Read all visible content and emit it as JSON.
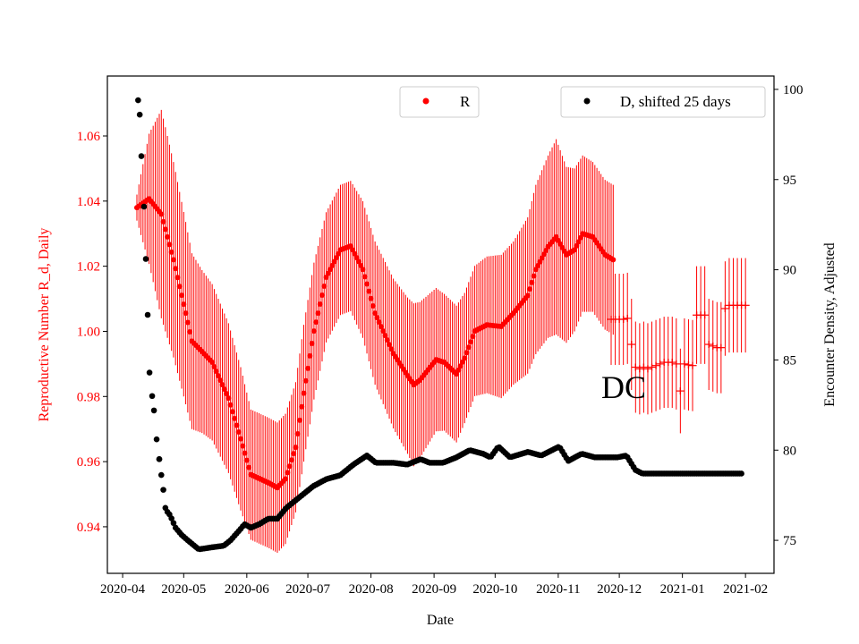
{
  "chart_data": {
    "type": "scatter",
    "xlabel": "Date",
    "ylabel_left": "Reproductive Number R_d, Daily",
    "ylabel_right": "Encounter Density, Adjusted",
    "annotation": "DC",
    "x_unit": "days",
    "xlim": [
      -7.5,
      320
    ],
    "ylim_left": [
      0.9257,
      1.0784
    ],
    "ylim_right": [
      73.17,
      100.74
    ],
    "xticks": [
      {
        "day": 0,
        "label": "2020-04"
      },
      {
        "day": 30,
        "label": "2020-05"
      },
      {
        "day": 61,
        "label": "2020-06"
      },
      {
        "day": 91,
        "label": "2020-07"
      },
      {
        "day": 122,
        "label": "2020-08"
      },
      {
        "day": 153,
        "label": "2020-09"
      },
      {
        "day": 183,
        "label": "2020-10"
      },
      {
        "day": 214,
        "label": "2020-11"
      },
      {
        "day": 244,
        "label": "2020-12"
      },
      {
        "day": 275,
        "label": "2021-01"
      },
      {
        "day": 306,
        "label": "2021-02"
      }
    ],
    "yticks_left": [
      "0.94",
      "0.96",
      "0.98",
      "1.00",
      "1.02",
      "1.04",
      "1.06"
    ],
    "yticks_right": [
      "75",
      "80",
      "85",
      "90",
      "95",
      "100"
    ],
    "legend": [
      {
        "label": "R",
        "color": "#ff0000",
        "placement": "top-center"
      },
      {
        "label": "D, shifted 25 days",
        "color": "#000000",
        "placement": "top-right"
      }
    ],
    "colors": {
      "R": "#ff0000",
      "D": "#000000"
    },
    "series_R": {
      "name": "R",
      "points": [
        [
          7,
          1.038,
          0.004
        ],
        [
          13,
          1.0407,
          0.02
        ],
        [
          19,
          1.036,
          0.032
        ],
        [
          25,
          1.022,
          0.03
        ],
        [
          31,
          1.0056,
          0.028
        ],
        [
          34,
          0.997,
          0.027
        ],
        [
          39,
          0.9938,
          0.025
        ],
        [
          44,
          0.9905,
          0.024
        ],
        [
          52,
          0.9795,
          0.023
        ],
        [
          58,
          0.967,
          0.022
        ],
        [
          63,
          0.956,
          0.02
        ],
        [
          72,
          0.9534,
          0.02
        ],
        [
          76,
          0.952,
          0.02
        ],
        [
          80,
          0.9547,
          0.02
        ],
        [
          85,
          0.9644,
          0.02
        ],
        [
          89,
          0.981,
          0.021
        ],
        [
          94,
          1.0001,
          0.021
        ],
        [
          100,
          1.0166,
          0.02
        ],
        [
          107,
          1.025,
          0.02
        ],
        [
          112,
          1.0262,
          0.02
        ],
        [
          118,
          1.019,
          0.021
        ],
        [
          124,
          1.0056,
          0.022
        ],
        [
          133,
          0.9932,
          0.023
        ],
        [
          140,
          0.9864,
          0.024
        ],
        [
          143,
          0.9836,
          0.025
        ],
        [
          146,
          0.985,
          0.024
        ],
        [
          154,
          0.9913,
          0.022
        ],
        [
          158,
          0.9905,
          0.021
        ],
        [
          164,
          0.9869,
          0.021
        ],
        [
          168,
          0.9918,
          0.02
        ],
        [
          173,
          1.0001,
          0.02
        ],
        [
          179,
          1.002,
          0.021
        ],
        [
          186,
          1.0015,
          0.022
        ],
        [
          192,
          1.0056,
          0.022
        ],
        [
          199,
          1.011,
          0.024
        ],
        [
          203,
          1.019,
          0.026
        ],
        [
          209,
          1.026,
          0.028
        ],
        [
          213,
          1.029,
          0.03
        ],
        [
          218,
          1.0235,
          0.027
        ],
        [
          222,
          1.025,
          0.025
        ],
        [
          226,
          1.03,
          0.024
        ],
        [
          231,
          1.029,
          0.023
        ],
        [
          237,
          1.0235,
          0.023
        ],
        [
          241,
          1.022,
          0.023
        ]
      ]
    },
    "series_R_late": {
      "name": "R (late)",
      "xerr": 2,
      "points": [
        [
          240,
          1.0037,
          0.014
        ],
        [
          242,
          1.0037,
          0.014
        ],
        [
          244,
          1.0037,
          0.014
        ],
        [
          246,
          1.0037,
          0.014
        ],
        [
          248,
          1.004,
          0.014
        ],
        [
          250,
          0.996,
          0.014
        ],
        [
          252,
          0.989,
          0.014
        ],
        [
          254,
          0.9885,
          0.014
        ],
        [
          256,
          0.989,
          0.014
        ],
        [
          258,
          0.9885,
          0.014
        ],
        [
          260,
          0.989,
          0.014
        ],
        [
          262,
          0.9895,
          0.014
        ],
        [
          264,
          0.99,
          0.014
        ],
        [
          266,
          0.9905,
          0.014
        ],
        [
          268,
          0.9905,
          0.014
        ],
        [
          270,
          0.9905,
          0.014
        ],
        [
          272,
          0.99,
          0.014
        ],
        [
          274,
          0.9817,
          0.013
        ],
        [
          276,
          0.99,
          0.014
        ],
        [
          278,
          0.9897,
          0.014
        ],
        [
          280,
          0.9895,
          0.014
        ],
        [
          282,
          1.005,
          0.015
        ],
        [
          284,
          1.005,
          0.015
        ],
        [
          286,
          1.005,
          0.015
        ],
        [
          288,
          0.996,
          0.014
        ],
        [
          290,
          0.9955,
          0.014
        ],
        [
          292,
          0.995,
          0.014
        ],
        [
          294,
          0.995,
          0.014
        ],
        [
          296,
          1.007,
          0.0145
        ],
        [
          298,
          1.008,
          0.0145
        ],
        [
          300,
          1.008,
          0.0145
        ],
        [
          302,
          1.008,
          0.0145
        ],
        [
          304,
          1.008,
          0.0145
        ],
        [
          306,
          1.008,
          0.0145
        ]
      ]
    },
    "series_D": {
      "name": "D, shifted 25 days",
      "points": [
        [
          7.6,
          99.4
        ],
        [
          8.4,
          98.6
        ],
        [
          9.2,
          96.3
        ],
        [
          10.5,
          93.5
        ],
        [
          11.4,
          90.6
        ],
        [
          12.3,
          87.5
        ],
        [
          13.2,
          84.3
        ],
        [
          14.5,
          83.0
        ],
        [
          15.4,
          82.2
        ],
        [
          16.7,
          80.6
        ],
        [
          18,
          79.5
        ],
        [
          18.9,
          78.7
        ],
        [
          19.8,
          78.0
        ],
        [
          21.1,
          76.7
        ],
        [
          23.3,
          76.4
        ],
        [
          26,
          75.7
        ],
        [
          29,
          75.3
        ],
        [
          32,
          75.0
        ],
        [
          37.4,
          74.5
        ],
        [
          43,
          74.6
        ],
        [
          49.7,
          74.7
        ],
        [
          53,
          75.0
        ],
        [
          58.5,
          75.7
        ],
        [
          59.8,
          75.9
        ],
        [
          63,
          75.7
        ],
        [
          67.2,
          75.9
        ],
        [
          71.6,
          76.2
        ],
        [
          76,
          76.2
        ],
        [
          80.4,
          76.8
        ],
        [
          87,
          77.4
        ],
        [
          93.6,
          78.0
        ],
        [
          100.2,
          78.4
        ],
        [
          106.8,
          78.6
        ],
        [
          113.4,
          79.2
        ],
        [
          120,
          79.7
        ],
        [
          124.4,
          79.3
        ],
        [
          133.2,
          79.3
        ],
        [
          139.8,
          79.2
        ],
        [
          146.4,
          79.5
        ],
        [
          150.8,
          79.3
        ],
        [
          157.4,
          79.3
        ],
        [
          164,
          79.6
        ],
        [
          170.5,
          80.0
        ],
        [
          177.1,
          79.8
        ],
        [
          180.7,
          79.6
        ],
        [
          184.6,
          80.2
        ],
        [
          190.3,
          79.6
        ],
        [
          199.1,
          79.9
        ],
        [
          205.7,
          79.7
        ],
        [
          214.5,
          80.2
        ],
        [
          218.9,
          79.4
        ],
        [
          225.5,
          79.8
        ],
        [
          232,
          79.6
        ],
        [
          243,
          79.6
        ],
        [
          247.5,
          79.7
        ],
        [
          251.9,
          78.9
        ],
        [
          255.4,
          78.7
        ],
        [
          304.6,
          78.7
        ]
      ]
    }
  }
}
